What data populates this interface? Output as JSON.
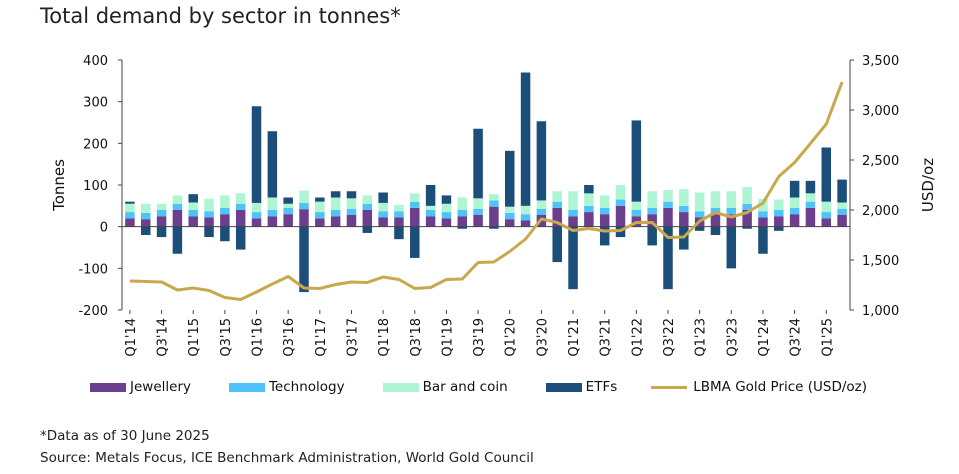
{
  "title": "Total demand by sector in tonnes*",
  "footnote": "*Data as of 30 June 2025",
  "source": "Source: Metals Focus, ICE Benchmark Administration, World Gold Council",
  "chart_data": {
    "type": "bar",
    "stacked": true,
    "ylabel": "Tonnes",
    "y2label": "USD/oz",
    "ylim": [
      -200,
      400
    ],
    "y2lim": [
      1000,
      3500
    ],
    "yticks": [
      "400",
      "300",
      "200",
      "100",
      "0",
      "-100",
      "-200"
    ],
    "y2ticks": [
      "3,500",
      "3,000",
      "2,500",
      "2,000",
      "1,500",
      "1,000"
    ],
    "x": [
      "Q1'14",
      "Q2'14",
      "Q3'14",
      "Q4'14",
      "Q1'15",
      "Q2'15",
      "Q3'15",
      "Q4'15",
      "Q1'16",
      "Q2'16",
      "Q3'16",
      "Q4'16",
      "Q1'17",
      "Q2'17",
      "Q3'17",
      "Q4'17",
      "Q1'18",
      "Q2'18",
      "Q3'18",
      "Q4'18",
      "Q1'19",
      "Q2'19",
      "Q3'19",
      "Q4'19",
      "Q1'20",
      "Q2'20",
      "Q3'20",
      "Q4'20",
      "Q1'21",
      "Q2'21",
      "Q3'21",
      "Q4'21",
      "Q1'22",
      "Q2'22",
      "Q3'22",
      "Q4'22",
      "Q1'23",
      "Q2'23",
      "Q3'23",
      "Q4'23",
      "Q1'24",
      "Q2'24",
      "Q3'24",
      "Q4'24",
      "Q1'25",
      "Q2'25"
    ],
    "xticklabels": [
      "Q1'14",
      "Q3'14",
      "Q1'15",
      "Q3'15",
      "Q1'16",
      "Q3'16",
      "Q1'17",
      "Q3'17",
      "Q1'18",
      "Q3'18",
      "Q1'19",
      "Q3'19",
      "Q1'20",
      "Q3'20",
      "Q1'21",
      "Q3'21",
      "Q1'22",
      "Q3'22",
      "Q1'23",
      "Q3'23",
      "Q1'24",
      "Q3'24",
      "Q1'25"
    ],
    "series": [
      {
        "name": "Jewellery",
        "color": "#6b3f8e",
        "type": "bar",
        "values": [
          20,
          18,
          25,
          40,
          25,
          22,
          30,
          40,
          20,
          25,
          30,
          42,
          20,
          25,
          28,
          40,
          22,
          22,
          45,
          25,
          20,
          25,
          28,
          48,
          18,
          15,
          28,
          45,
          25,
          35,
          30,
          50,
          25,
          30,
          45,
          35,
          22,
          30,
          30,
          40,
          22,
          25,
          30,
          45,
          20,
          28
        ]
      },
      {
        "name": "Technology",
        "color": "#4fc3f7",
        "type": "bar",
        "values": [
          15,
          15,
          15,
          15,
          15,
          15,
          15,
          15,
          15,
          15,
          15,
          15,
          15,
          15,
          15,
          15,
          15,
          15,
          15,
          15,
          15,
          15,
          15,
          15,
          15,
          15,
          15,
          15,
          15,
          15,
          15,
          15,
          15,
          15,
          15,
          15,
          15,
          15,
          15,
          15,
          15,
          15,
          15,
          15,
          15,
          15
        ]
      },
      {
        "name": "Bar and coin",
        "color": "#aef5d3",
        "type": "bar",
        "values": [
          20,
          22,
          15,
          20,
          18,
          30,
          30,
          25,
          22,
          30,
          10,
          30,
          25,
          30,
          25,
          20,
          20,
          15,
          20,
          10,
          20,
          30,
          25,
          15,
          15,
          20,
          20,
          25,
          45,
          30,
          30,
          35,
          20,
          40,
          28,
          40,
          45,
          40,
          40,
          40,
          30,
          25,
          25,
          20,
          25,
          15
        ]
      },
      {
        "name": "ETFs",
        "color": "#1c4e7a",
        "type": "bar",
        "values": [
          5,
          -20,
          -25,
          -65,
          20,
          -25,
          -35,
          -55,
          232,
          159,
          15,
          -157,
          10,
          15,
          17,
          -15,
          25,
          -30,
          -75,
          50,
          20,
          -5,
          167,
          -5,
          134,
          320,
          190,
          -85,
          -150,
          20,
          -45,
          -25,
          195,
          -45,
          -150,
          -55,
          -10,
          -20,
          -100,
          -5,
          -65,
          -10,
          40,
          30,
          130,
          55
        ]
      },
      {
        "name": "LBMA Gold Price (USD/oz)",
        "color": "#c9a84c",
        "type": "line",
        "axis": "right",
        "values": [
          1290,
          1285,
          1280,
          1200,
          1220,
          1195,
          1125,
          1105,
          1180,
          1260,
          1335,
          1220,
          1215,
          1255,
          1280,
          1275,
          1330,
          1305,
          1215,
          1225,
          1305,
          1310,
          1475,
          1480,
          1585,
          1710,
          1910,
          1875,
          1795,
          1815,
          1790,
          1795,
          1875,
          1875,
          1725,
          1730,
          1890,
          1975,
          1930,
          1975,
          2070,
          2335,
          2475,
          2665,
          2860,
          3280
        ]
      }
    ],
    "legend_position": "bottom",
    "grid": false
  }
}
